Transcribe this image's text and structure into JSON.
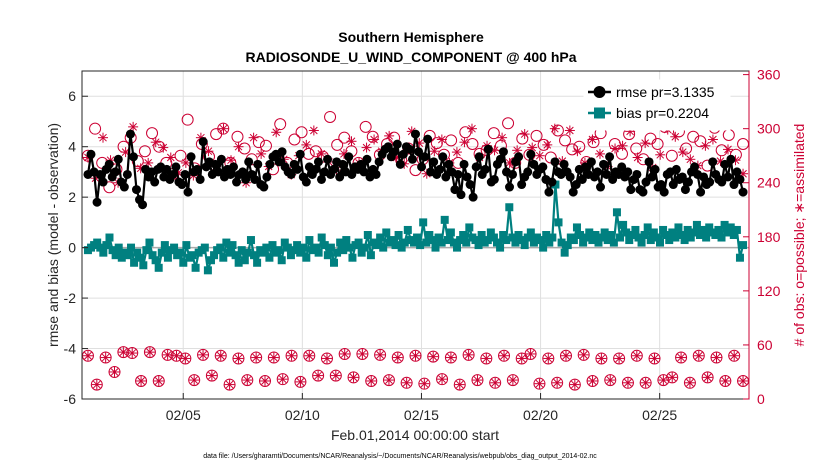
{
  "chart_data": {
    "type": "line",
    "title": "Southern Hemisphere",
    "subtitle": "RADIOSONDE_U_WIND_COMPONENT @ 400 hPa",
    "xlabel": "Feb.01,2014 00:00:00 start",
    "ylabel": "rmse and bias (model - observation)",
    "y2label": "# of obs: o=possible; ∗=assimilated",
    "footnote": "data file: /Users/gharamti/Documents/NCAR/Reanalysis/~/Documents/NCAR/Reanalysis/webpub/obs_diag_output_2014-02.nc",
    "xlim": [
      0.75,
      28.75
    ],
    "ylim": [
      -6,
      7
    ],
    "y2lim": [
      0,
      364
    ],
    "xticks": [
      5,
      10,
      15,
      20,
      25
    ],
    "xtick_labels": [
      "02/05",
      "02/10",
      "02/15",
      "02/20",
      "02/25"
    ],
    "yticks": [
      -6,
      -4,
      -2,
      0,
      2,
      4,
      6
    ],
    "ytick_labels": [
      "-6",
      "-4",
      "-2",
      "0",
      "2",
      "4",
      "6"
    ],
    "y2ticks": [
      0,
      60,
      120,
      180,
      240,
      300,
      360
    ],
    "y2tick_labels": [
      "0",
      "60",
      "120",
      "180",
      "240",
      "300",
      "360"
    ],
    "legend": [
      "rmse pr=3.1335",
      "bias pr=0.2204"
    ],
    "legend_position": "top-right",
    "series": [
      {
        "name": "rmse",
        "color": "#000000",
        "values": [
          2.9,
          3.7,
          3.0,
          1.8,
          2.9,
          2.6,
          3.1,
          3.3,
          2.8,
          3.0,
          3.5,
          2.6,
          2.4,
          2.9,
          4.5,
          3.6,
          2.3,
          1.9,
          1.7,
          3.1,
          2.8,
          3.0,
          2.6,
          3.1,
          3.2,
          2.8,
          3.1,
          2.7,
          2.9,
          3.2,
          2.6,
          2.5,
          2.9,
          2.2,
          3.6,
          3.0,
          3.1,
          2.7,
          4.2,
          3.2,
          3.4,
          2.9,
          3.3,
          3.0,
          3.5,
          2.8,
          3.1,
          2.9,
          3.2,
          2.6,
          2.9,
          3.0,
          2.7,
          3.4,
          2.9,
          2.7,
          3.3,
          2.5,
          2.4,
          2.8,
          3.3,
          3.6,
          3.7,
          3.4,
          3.8,
          3.2,
          3.0,
          2.9,
          3.3,
          3.1,
          3.7,
          2.8,
          2.6,
          3.2,
          2.9,
          3.1,
          3.4,
          2.7,
          3.0,
          3.5,
          2.9,
          3.1,
          3.4,
          2.8,
          3.3,
          3.0,
          3.6,
          2.9,
          3.2,
          3.1,
          3.3,
          3.0,
          3.5,
          2.8,
          3.1,
          2.9,
          3.4,
          3.7,
          3.9,
          4.0,
          3.6,
          3.8,
          4.1,
          3.3,
          3.7,
          4.0,
          3.9,
          3.5,
          4.5,
          3.8,
          3.2,
          3.6,
          4.3,
          3.0,
          3.4,
          2.9,
          3.1,
          3.6,
          2.8,
          3.3,
          3.0,
          2.3,
          2.9,
          2.1,
          3.3,
          2.8,
          2.5,
          2.0,
          3.2,
          3.6,
          2.9,
          3.1,
          3.9,
          2.6,
          2.7,
          3.3,
          3.5,
          3.8,
          3.0,
          2.4,
          2.9,
          3.4,
          3.6,
          2.5,
          2.8,
          3.0,
          3.7,
          3.3,
          2.9,
          3.1,
          3.2,
          2.7,
          2.2,
          2.6,
          3.4,
          3.0,
          2.9,
          3.3,
          3.0,
          2.8,
          2.2,
          2.5,
          3.1,
          2.7,
          3.2,
          2.9,
          3.4,
          2.8,
          3.0,
          2.4,
          3.3,
          2.9,
          3.6,
          2.7,
          3.0,
          2.9,
          3.2,
          2.8,
          3.0,
          2.3,
          2.7,
          2.9,
          2.3,
          2.2,
          2.6,
          3.4,
          2.8,
          3.1,
          2.4,
          2.5,
          2.2,
          2.9,
          3.0,
          2.5,
          3.1,
          2.7,
          2.8,
          2.3,
          2.6,
          3.0,
          3.2,
          2.9,
          2.2,
          2.8,
          2.5,
          2.6,
          3.4,
          2.9,
          2.7,
          2.6,
          3.3,
          2.8,
          3.5,
          2.5,
          3.0,
          2.7,
          2.2
        ]
      },
      {
        "name": "bias",
        "color": "#008080",
        "values": [
          -0.1,
          0.0,
          0.1,
          0.2,
          0.0,
          -0.2,
          0.1,
          0.4,
          -0.1,
          -0.3,
          0.0,
          -0.4,
          -0.2,
          -0.3,
          0.0,
          -0.6,
          -0.2,
          -0.4,
          -0.7,
          -0.1,
          0.2,
          -0.3,
          -0.5,
          -0.8,
          -0.2,
          0.1,
          -0.4,
          -0.1,
          0.0,
          -0.3,
          -0.2,
          -0.6,
          0.1,
          -0.4,
          -0.3,
          -0.8,
          -0.2,
          -0.1,
          0.0,
          -0.9,
          -0.5,
          -0.3,
          -0.1,
          0.0,
          -0.4,
          0.2,
          -0.2,
          0.1,
          -0.3,
          -0.6,
          -0.1,
          -0.5,
          -0.2,
          0.3,
          -0.3,
          -0.6,
          -0.1,
          -0.2,
          0.0,
          -0.4,
          0.1,
          -0.2,
          -0.1,
          -0.5,
          0.2,
          0.0,
          -0.3,
          -0.1,
          0.1,
          -0.2,
          0.0,
          -0.4,
          0.3,
          -0.1,
          0.0,
          -0.2,
          0.4,
          0.1,
          -0.3,
          0.0,
          -0.6,
          -0.2,
          0.2,
          -0.1,
          0.3,
          0.0,
          -0.4,
          0.1,
          0.2,
          -0.2,
          0.0,
          0.5,
          -0.3,
          0.2,
          0.1,
          0.4,
          0.0,
          0.6,
          0.2,
          0.3,
          0.1,
          0.5,
          0.0,
          0.2,
          0.7,
          0.3,
          0.2,
          0.4,
          0.1,
          1.0,
          0.2,
          0.5,
          0.3,
          0.0,
          0.4,
          0.2,
          1.1,
          0.3,
          0.6,
          0.2,
          0.0,
          0.3,
          0.5,
          0.2,
          0.8,
          0.4,
          0.3,
          0.1,
          0.5,
          0.2,
          0.3,
          0.6,
          0.4,
          0.2,
          0.0,
          0.5,
          0.3,
          1.6,
          0.4,
          0.2,
          0.5,
          0.3,
          0.1,
          0.4,
          0.6,
          0.2,
          0.4,
          0.3,
          0.0,
          0.5,
          0.2,
          0.4,
          2.5,
          1.0,
          0.2,
          -0.2,
          0.1,
          0.4,
          0.3,
          0.8,
          0.5,
          0.2,
          0.4,
          0.6,
          0.3,
          0.5,
          0.2,
          0.4,
          0.6,
          0.3,
          0.5,
          0.2,
          1.4,
          0.4,
          0.9,
          0.6,
          0.3,
          0.5,
          0.7,
          0.4,
          0.2,
          0.5,
          0.8,
          0.3,
          0.6,
          0.4,
          0.2,
          0.7,
          0.5,
          0.3,
          0.6,
          0.4,
          0.8,
          0.5,
          0.3,
          0.7,
          0.4,
          0.6,
          0.9,
          0.5,
          0.7,
          0.4,
          0.8,
          0.6,
          0.5,
          0.7,
          0.4,
          0.9,
          0.6,
          0.8,
          0.5,
          0.7,
          -0.4,
          0.1
        ]
      },
      {
        "name": "possible",
        "color": "#cc0033",
        "values": [
          270,
          300,
          262,
          235,
          255,
          280,
          290,
          264,
          275,
          295,
          280,
          262,
          250,
          270,
          310,
          256,
          283,
          269,
          294,
          300,
          262,
          291,
          278,
          266,
          285,
          281,
          255,
          305,
          262,
          288,
          296,
          272,
          275,
          269,
          313,
          282,
          290,
          275,
          262,
          302,
          291,
          271,
          283,
          290,
          265,
          278,
          254,
          266,
          292,
          284,
          271,
          287,
          262,
          296,
          283,
          272,
          276,
          295,
          281,
          306,
          262,
          289,
          271,
          292,
          282,
          268,
          298,
          287,
          277,
          280,
          263,
          285,
          295,
          308,
          283,
          272,
          294,
          278,
          266,
          289,
          283,
          302,
          270,
          297,
          278,
          291,
          286,
          259,
          301,
          276,
          293,
          271,
          283
        ]
      },
      {
        "name": "assimilated",
        "color": "#cc0033",
        "values": [
          268,
          245,
          290,
          265,
          240,
          274,
          302,
          256,
          262,
          285,
          279,
          268,
          251,
          262,
          248,
          290,
          275,
          258,
          300,
          265,
          280,
          240,
          290,
          272,
          258,
          296,
          266,
          249,
          270,
          282,
          298,
          272,
          263,
          254,
          272,
          286,
          262,
          279,
          288,
          275,
          292,
          268,
          261,
          297,
          284,
          250,
          275,
          288,
          262,
          274,
          285,
          300,
          268,
          281,
          276,
          290,
          262,
          276,
          294,
          279,
          270,
          282,
          300,
          264,
          298,
          275,
          262,
          288,
          272,
          258,
          278,
          281,
          297,
          268,
          284,
          257,
          271,
          299,
          291,
          274,
          266,
          259,
          281,
          288,
          264,
          277,
          265,
          250
        ]
      },
      {
        "name": "possible_low",
        "color": "#cc0033",
        "values": [
          48,
          16,
          46,
          30,
          52,
          51,
          20,
          52,
          20,
          49,
          48,
          45,
          21,
          49,
          26,
          48,
          16,
          45,
          21,
          46,
          20,
          46,
          22,
          48,
          19,
          48,
          26,
          45,
          26,
          50,
          24,
          50,
          20,
          49,
          21,
          46,
          18,
          48,
          17,
          47,
          22,
          46,
          16,
          49,
          21,
          45,
          18,
          48,
          21,
          45,
          50,
          17,
          45,
          18,
          48,
          16,
          49,
          20,
          45,
          21,
          45,
          18,
          48,
          18,
          45,
          21,
          24,
          46,
          18,
          48,
          24,
          46,
          20,
          48,
          20
        ]
      },
      {
        "name": "assimilated_low",
        "color": "#cc0033",
        "values": [
          48,
          16,
          46,
          30,
          52,
          51,
          20,
          52,
          20,
          49,
          48,
          45,
          21,
          49,
          26,
          48,
          16,
          45,
          21,
          46,
          20,
          46,
          22,
          48,
          19,
          48,
          26,
          45,
          26,
          50,
          24,
          50,
          20,
          49,
          21,
          46,
          18,
          48,
          17,
          47,
          22,
          46,
          16,
          49,
          21,
          45,
          18,
          48,
          21,
          45,
          50,
          17,
          45,
          18,
          48,
          16,
          49,
          20,
          45,
          21,
          45,
          18,
          48,
          18,
          45,
          21,
          24,
          46,
          18,
          48,
          24,
          46,
          20,
          48,
          20
        ]
      }
    ]
  }
}
